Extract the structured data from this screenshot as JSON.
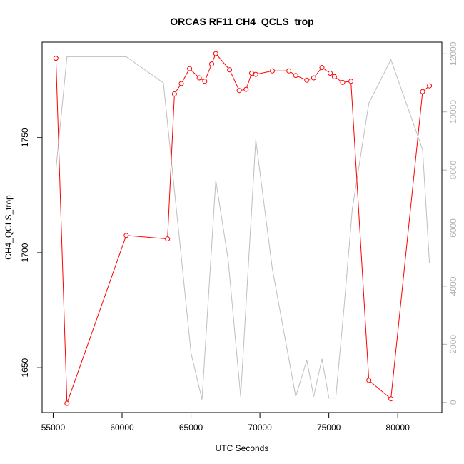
{
  "chart_data": {
    "type": "line",
    "title": "ORCAS RF11 CH4_QCLS_trop",
    "xlabel": "UTC Seconds",
    "ylabel": "CH4_QCLS_trop",
    "y2label": "",
    "xlim": [
      54200,
      83200
    ],
    "ylim": [
      1630.5,
      1791.5
    ],
    "y2lim": [
      -350,
      12400
    ],
    "xticks": [
      55000,
      60000,
      65000,
      70000,
      75000,
      80000
    ],
    "yticks": [
      1650,
      1700,
      1750
    ],
    "y2ticks": [
      0,
      2000,
      4000,
      6000,
      8000,
      10000,
      12000
    ],
    "grid": false,
    "colors": {
      "primary": "#ff0000",
      "secondary": "#bebebe",
      "axis": "#000000",
      "axis_right": "#b3b3b3"
    },
    "series": [
      {
        "axis": "left",
        "style": "line-with-open-circles",
        "color": "#ff0000",
        "x": [
          55200,
          56000,
          60300,
          63300,
          63800,
          64300,
          64900,
          65600,
          66000,
          66500,
          66800,
          67800,
          68500,
          69000,
          69400,
          69700,
          70900,
          72100,
          72600,
          73400,
          73900,
          74500,
          75100,
          75400,
          76000,
          76600,
          77900,
          79500,
          81800,
          82300
        ],
        "y": [
          1784.5,
          1634.5,
          1707.5,
          1706,
          1769,
          1773.5,
          1780,
          1776,
          1774.5,
          1782,
          1786.5,
          1779.5,
          1770.5,
          1771,
          1778,
          1777.5,
          1779,
          1779,
          1777,
          1775,
          1776,
          1780.5,
          1778,
          1776.5,
          1774,
          1774.5,
          1644.5,
          1636.5,
          1770,
          1772.5
        ]
      },
      {
        "axis": "right",
        "style": "line",
        "color": "#bebebe",
        "x": [
          55200,
          56000,
          60300,
          63000,
          64300,
          65000,
          65800,
          66800,
          67700,
          68600,
          69700,
          70900,
          72600,
          73400,
          73900,
          74500,
          75000,
          75500,
          76100,
          76700,
          77900,
          79500,
          81800,
          82300
        ],
        "y": [
          8000,
          11900,
          11900,
          11000,
          5000,
          1700,
          100,
          7650,
          4900,
          200,
          9050,
          4600,
          200,
          1450,
          200,
          1500,
          150,
          150,
          3250,
          6650,
          10300,
          11800,
          8700,
          4800
        ]
      }
    ]
  }
}
